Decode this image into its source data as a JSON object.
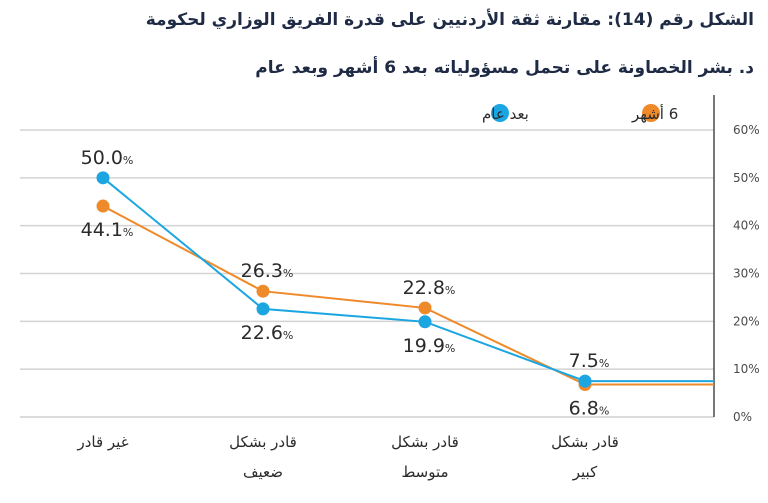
{
  "title_line1": "الشكل رقم (14): مقارنة ثقة الأردنيين على قدرة الفريق الوزاري لحكومة",
  "title_line2": "د. بشر الخصاونة على تحمل مسؤولياته بعد 6 أشهر وبعد عام",
  "chart_data": {
    "type": "line",
    "categories": [
      "غير قادر",
      "قادر بشكل ضعيف",
      "قادر بشكل متوسط",
      "قادر بشكل كبير"
    ],
    "category_lines": [
      [
        "غير قادر"
      ],
      [
        "قادر بشكل",
        "ضعيف"
      ],
      [
        "قادر بشكل",
        "متوسط"
      ],
      [
        "قادر بشكل",
        "كبير"
      ]
    ],
    "ylim": [
      0,
      60
    ],
    "yticks": [
      0,
      10,
      20,
      30,
      40,
      50,
      60
    ],
    "ytick_suffix": "%",
    "grid": true,
    "legend_position": "top",
    "series": [
      {
        "name": "6 أشهر",
        "color": "#ef8a2a",
        "values": [
          44.1,
          26.3,
          22.8,
          6.8
        ],
        "labels": [
          "44.1",
          "26.3",
          "22.8",
          "6.8"
        ],
        "label_side": [
          "below",
          "above",
          "above",
          "below"
        ]
      },
      {
        "name": "بعد عام",
        "color": "#1ba6e2",
        "values": [
          50.0,
          22.6,
          19.9,
          7.5
        ],
        "labels": [
          "50.0",
          "22.6",
          "19.9",
          "7.5"
        ],
        "label_side": [
          "above",
          "below",
          "below",
          "above"
        ]
      }
    ]
  }
}
